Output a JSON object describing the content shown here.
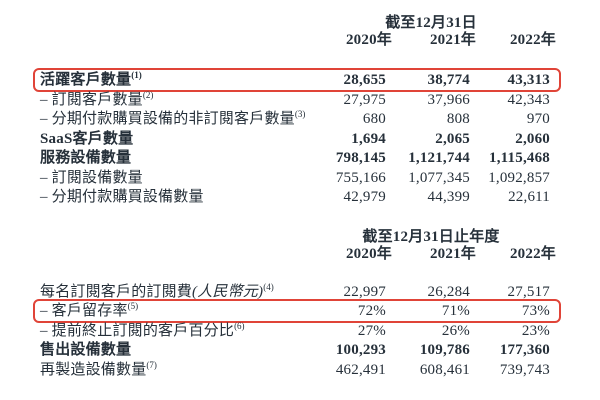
{
  "colors": {
    "highlight_border": "#e04438",
    "text": "#26303a",
    "background": "#ffffff"
  },
  "table1": {
    "period_header": "截至12月31日",
    "years": [
      "2020年",
      "2021年",
      "2022年"
    ],
    "rows": [
      {
        "label": "活躍客戶數量",
        "sup": "(1)",
        "values": [
          "28,655",
          "38,774",
          "43,313"
        ]
      },
      {
        "label": "– 訂閱客戶數量",
        "sup": "(2)",
        "values": [
          "27,975",
          "37,966",
          "42,343"
        ]
      },
      {
        "label": "– 分期付款購買設備的非訂閱客戶數量",
        "sup": "(3)",
        "values": [
          "680",
          "808",
          "970"
        ]
      },
      {
        "label": "SaaS客戶數量",
        "sup": "",
        "values": [
          "1,694",
          "2,065",
          "2,060"
        ]
      },
      {
        "label": "服務設備數量",
        "sup": "",
        "values": [
          "798,145",
          "1,121,744",
          "1,115,468"
        ]
      },
      {
        "label": "– 訂閱設備數量",
        "sup": "",
        "values": [
          "755,166",
          "1,077,345",
          "1,092,857"
        ]
      },
      {
        "label": "– 分期付款購買設備數量",
        "sup": "",
        "values": [
          "42,979",
          "44,399",
          "22,611"
        ]
      }
    ]
  },
  "table2": {
    "period_header": "截至12月31日止年度",
    "years": [
      "2020年",
      "2021年",
      "2022年"
    ],
    "rows": [
      {
        "label": "每名訂閱客戶的訂閱費",
        "label_italic": "(人民幣元)",
        "sup": "(4)",
        "values": [
          "22,997",
          "26,284",
          "27,517"
        ]
      },
      {
        "label": "– 客戶留存率",
        "sup": "(5)",
        "values": [
          "72%",
          "71%",
          "73%"
        ]
      },
      {
        "label": "– 提前終止訂閱的客戶百分比",
        "sup": "(6)",
        "values": [
          "27%",
          "26%",
          "23%"
        ]
      },
      {
        "label": "售出設備數量",
        "sup": "",
        "values": [
          "100,293",
          "109,786",
          "177,360"
        ]
      },
      {
        "label": "再製造設備數量",
        "sup": "(7)",
        "values": [
          "462,491",
          "608,461",
          "739,743"
        ]
      }
    ]
  }
}
